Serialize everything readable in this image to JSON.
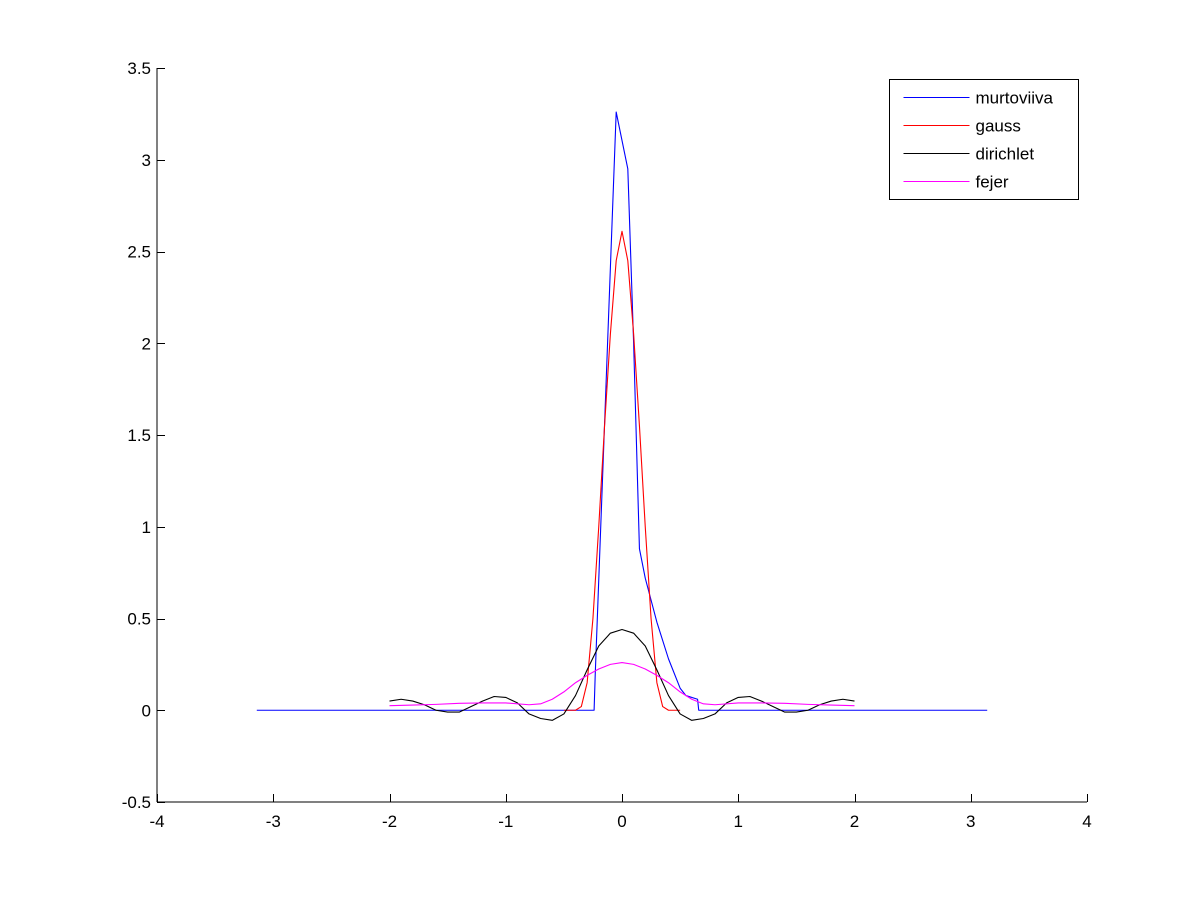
{
  "chart_data": {
    "type": "line",
    "title": "",
    "xlabel": "",
    "ylabel": "",
    "xlim": [
      -4,
      4
    ],
    "ylim": [
      -0.5,
      3.5
    ],
    "xticks": [
      -4,
      -3,
      -2,
      -1,
      0,
      1,
      2,
      3,
      4
    ],
    "yticks": [
      -0.5,
      0,
      0.5,
      1,
      1.5,
      2,
      2.5,
      3,
      3.5
    ],
    "xtick_labels": [
      "-4",
      "-3",
      "-2",
      "-1",
      "0",
      "1",
      "2",
      "3",
      "4"
    ],
    "ytick_labels": [
      "-0.5",
      "0",
      "0.5",
      "1",
      "1.5",
      "2",
      "2.5",
      "3",
      "3.5"
    ],
    "grid": false,
    "legend_position": "top-right",
    "series": [
      {
        "name": "murtoviiva",
        "color": "#0000ff",
        "x": [
          -3.1416,
          -0.24,
          -0.23,
          -0.05,
          0.05,
          0.1,
          0.15,
          0.2,
          0.3,
          0.4,
          0.5,
          0.55,
          0.65,
          0.66,
          3.1416
        ],
        "y": [
          0,
          0,
          0.2,
          3.26,
          2.95,
          2.0,
          0.88,
          0.72,
          0.48,
          0.28,
          0.12,
          0.08,
          0.06,
          0,
          0
        ]
      },
      {
        "name": "gauss",
        "color": "#ff0000",
        "x": [
          -0.5,
          -0.4,
          -0.35,
          -0.3,
          -0.25,
          -0.2,
          -0.15,
          -0.1,
          -0.05,
          0,
          0.05,
          0.1,
          0.15,
          0.2,
          0.25,
          0.3,
          0.35,
          0.4,
          0.5
        ],
        "y": [
          0,
          0,
          0.02,
          0.15,
          0.5,
          1.0,
          1.55,
          2.05,
          2.45,
          2.61,
          2.45,
          2.05,
          1.55,
          1.0,
          0.5,
          0.15,
          0.02,
          0,
          0
        ]
      },
      {
        "name": "dirichlet",
        "color": "#000000",
        "x": [
          -2,
          -1.9,
          -1.8,
          -1.7,
          -1.6,
          -1.5,
          -1.4,
          -1.3,
          -1.2,
          -1.1,
          -1.0,
          -0.9,
          -0.8,
          -0.7,
          -0.6,
          -0.5,
          -0.4,
          -0.3,
          -0.2,
          -0.1,
          0,
          0.1,
          0.2,
          0.3,
          0.4,
          0.5,
          0.6,
          0.7,
          0.8,
          0.9,
          1.0,
          1.1,
          1.2,
          1.3,
          1.4,
          1.5,
          1.6,
          1.7,
          1.8,
          1.9,
          2.0
        ],
        "y": [
          0.05,
          0.06,
          0.05,
          0.03,
          0.0,
          -0.01,
          -0.01,
          0.02,
          0.05,
          0.075,
          0.07,
          0.04,
          -0.02,
          -0.045,
          -0.055,
          -0.02,
          0.08,
          0.22,
          0.35,
          0.42,
          0.44,
          0.42,
          0.35,
          0.22,
          0.08,
          -0.02,
          -0.055,
          -0.045,
          -0.02,
          0.04,
          0.07,
          0.075,
          0.05,
          0.02,
          -0.01,
          -0.01,
          0.0,
          0.03,
          0.05,
          0.06,
          0.05
        ]
      },
      {
        "name": "fejer",
        "color": "#ff00ff",
        "x": [
          -2,
          -1.8,
          -1.6,
          -1.4,
          -1.2,
          -1.0,
          -0.8,
          -0.7,
          -0.6,
          -0.5,
          -0.4,
          -0.3,
          -0.2,
          -0.1,
          0,
          0.1,
          0.2,
          0.3,
          0.4,
          0.5,
          0.6,
          0.7,
          0.8,
          1.0,
          1.2,
          1.4,
          1.6,
          1.8,
          2.0
        ],
        "y": [
          0.025,
          0.028,
          0.032,
          0.038,
          0.04,
          0.04,
          0.03,
          0.035,
          0.06,
          0.1,
          0.15,
          0.19,
          0.225,
          0.25,
          0.26,
          0.25,
          0.225,
          0.19,
          0.15,
          0.1,
          0.06,
          0.035,
          0.03,
          0.04,
          0.04,
          0.038,
          0.032,
          0.028,
          0.025
        ]
      }
    ]
  }
}
